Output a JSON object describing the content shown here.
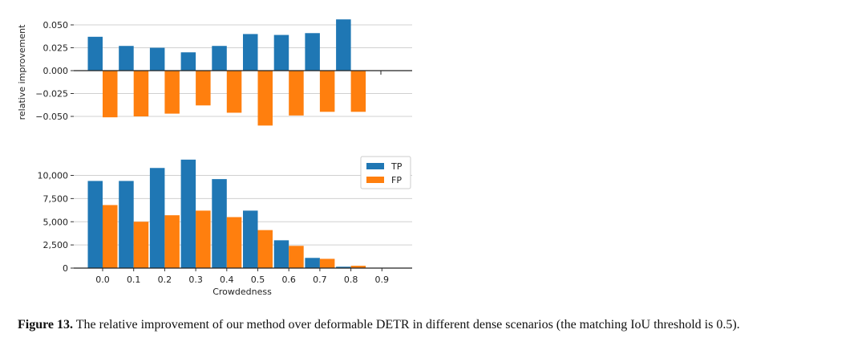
{
  "chart_data": [
    {
      "type": "bar",
      "categories": [
        "0.0",
        "0.1",
        "0.2",
        "0.3",
        "0.4",
        "0.5",
        "0.6",
        "0.7",
        "0.8",
        "0.9"
      ],
      "series": [
        {
          "values": [
            0.037,
            0.027,
            0.025,
            0.02,
            0.027,
            0.04,
            0.039,
            0.041,
            0.056,
            null
          ]
        },
        {
          "values": [
            -0.051,
            -0.05,
            -0.047,
            -0.038,
            -0.046,
            -0.06,
            -0.049,
            -0.045,
            -0.045,
            null
          ]
        }
      ],
      "ylabel": "relative improvement",
      "ylim": [
        -0.065,
        0.065
      ],
      "yticks": [
        "0.050",
        "0.025",
        "0.000",
        "−0.025",
        "−0.050"
      ],
      "ytick_values": [
        0.05,
        0.025,
        0.0,
        -0.025,
        -0.05
      ],
      "colors": [
        "#1f77b4",
        "#ff7f0e"
      ],
      "grid": "horizontal"
    },
    {
      "type": "bar",
      "categories": [
        "0.0",
        "0.1",
        "0.2",
        "0.3",
        "0.4",
        "0.5",
        "0.6",
        "0.7",
        "0.8",
        "0.9"
      ],
      "series": [
        {
          "name": "TP",
          "values": [
            9400,
            9400,
            10800,
            11700,
            9600,
            6200,
            3000,
            1100,
            150,
            0
          ]
        },
        {
          "name": "FP",
          "values": [
            6800,
            5000,
            5700,
            6200,
            5500,
            4100,
            2400,
            1000,
            250,
            0
          ]
        }
      ],
      "xlabel": "Crowdedness",
      "ylim": [
        0,
        12500
      ],
      "yticks": [
        "0",
        "2,500",
        "5,000",
        "7,500",
        "10,000"
      ],
      "ytick_values": [
        0,
        2500,
        5000,
        7500,
        10000
      ],
      "colors": [
        "#1f77b4",
        "#ff7f0e"
      ],
      "legend": "top-right",
      "grid": "horizontal"
    }
  ],
  "caption": {
    "label": "Figure 13.",
    "text": " The relative improvement of our method over deformable DETR in different dense scenarios (the matching IoU threshold is 0.5)."
  }
}
